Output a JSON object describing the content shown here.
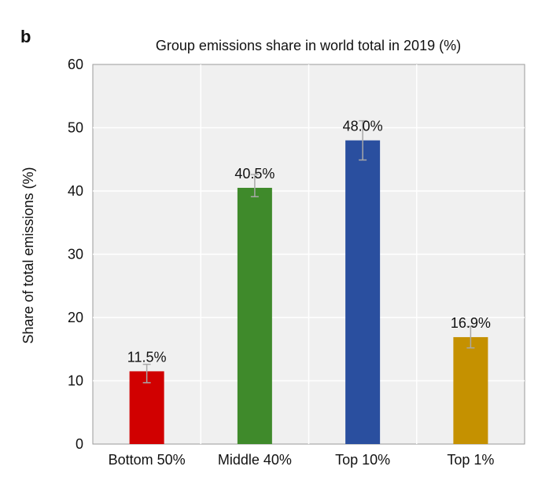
{
  "panel_label": "b",
  "chart_data": {
    "type": "bar",
    "title": "Group emissions share in world total in 2019 (%)",
    "xlabel": "",
    "ylabel": "Share of total emissions (%)",
    "ylim": [
      0,
      60
    ],
    "yticks": [
      0,
      10,
      20,
      30,
      40,
      50,
      60
    ],
    "grid": true,
    "categories": [
      "Bottom 50%",
      "Middle 40%",
      "Top 10%",
      "Top 1%"
    ],
    "values": [
      11.5,
      40.5,
      48.0,
      16.9
    ],
    "value_labels": [
      "11.5%",
      "40.5%",
      "48.0%",
      "16.9%"
    ],
    "error_low": [
      9.7,
      39.1,
      44.9,
      15.2
    ],
    "error_high": [
      12.6,
      42.6,
      51.1,
      18.6
    ],
    "colors": [
      "#d10000",
      "#3f8a2b",
      "#2a4f9f",
      "#c59100"
    ],
    "plot_background": "#f0f0f0",
    "errorbar_color": "#a8a8a8"
  }
}
